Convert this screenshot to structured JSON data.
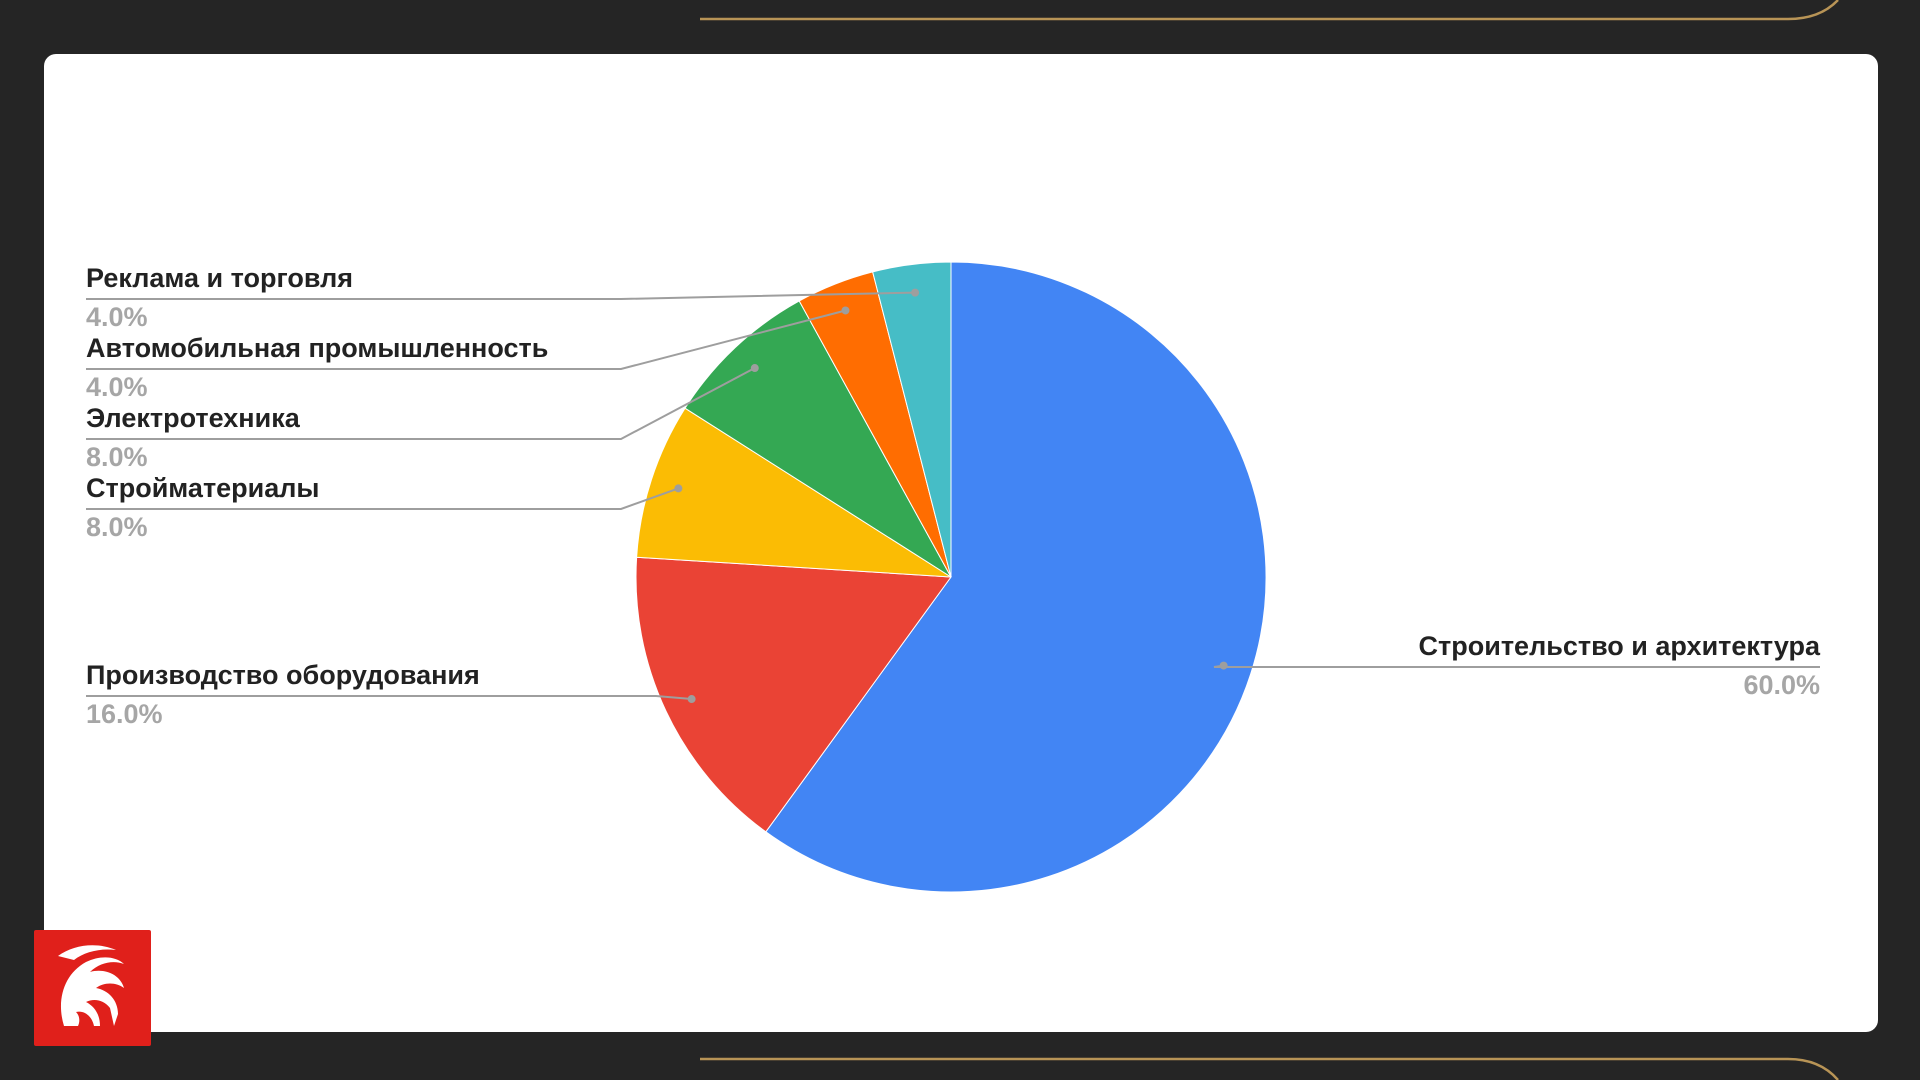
{
  "theme": {
    "page_bg": "#252525",
    "card_bg": "#ffffff",
    "accent_line": "#b89456",
    "logo_bg": "#e0201b",
    "label_color": "#222222",
    "percent_color": "#a6a6a6",
    "leader_color": "#9e9e9e"
  },
  "logo": {
    "icon": "dragon-logo-icon"
  },
  "chart_data": {
    "type": "pie",
    "title": "",
    "start_angle_deg": 0,
    "direction": "clockwise",
    "legend": "none",
    "labels_position": "outside-with-leader-lines",
    "slices": [
      {
        "label": "Строительство и архитектура",
        "value": 60.0,
        "percent_label": "60.0%",
        "color": "#4285f4"
      },
      {
        "label": "Производство оборудования",
        "value": 16.0,
        "percent_label": "16.0%",
        "color": "#ea4335"
      },
      {
        "label": "Стройматериалы",
        "value": 8.0,
        "percent_label": "8.0%",
        "color": "#fbbc04"
      },
      {
        "label": "Электротехника",
        "value": 8.0,
        "percent_label": "8.0%",
        "color": "#34a853"
      },
      {
        "label": "Автомобильная промышленность",
        "value": 4.0,
        "percent_label": "4.0%",
        "color": "#ff6d01"
      },
      {
        "label": "Реклама и торговля",
        "value": 4.0,
        "percent_label": "4.0%",
        "color": "#46bdc6"
      }
    ]
  }
}
